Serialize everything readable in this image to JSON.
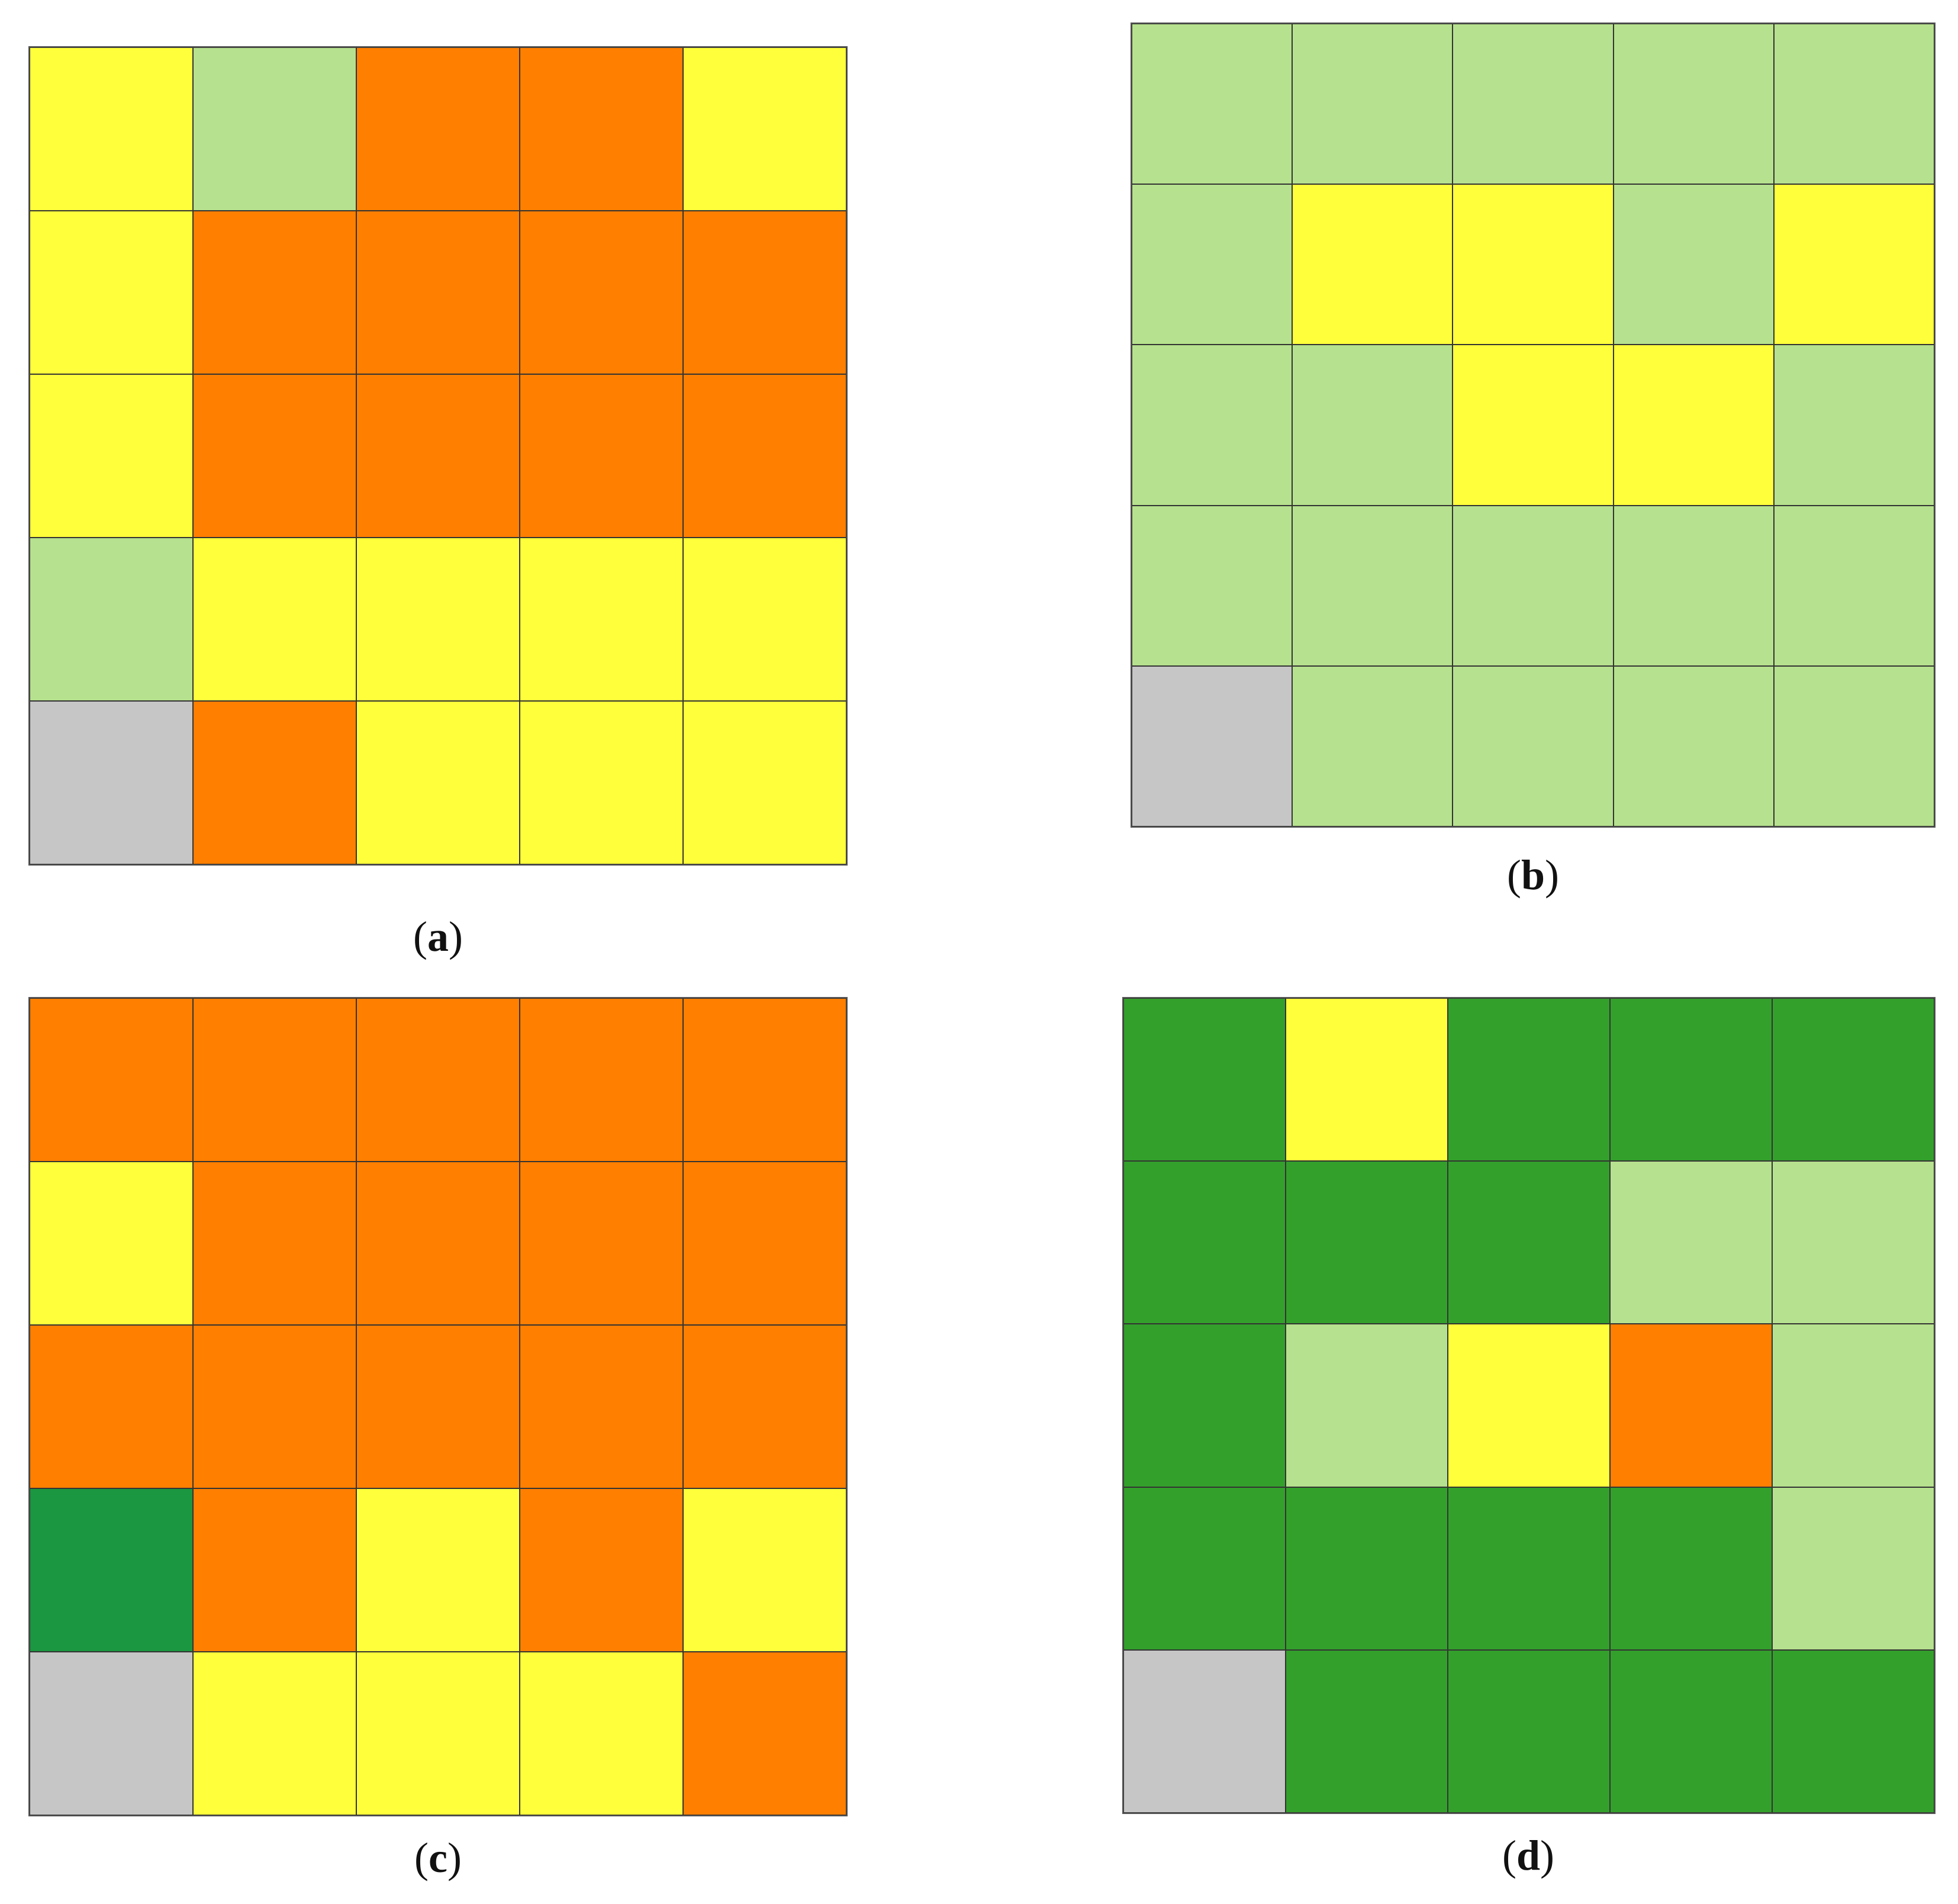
{
  "colors": {
    "O": "#FF7F00",
    "Y": "#FFFF3B",
    "L": "#B6E18E",
    "G": "#34A02C",
    "D": "#1B9641",
    "X": "#C6C6C6"
  },
  "panels": [
    {
      "id": "a",
      "label": "a",
      "cells": [
        [
          "Y",
          "L",
          "O",
          "O",
          "Y"
        ],
        [
          "Y",
          "O",
          "O",
          "O",
          "O"
        ],
        [
          "Y",
          "O",
          "O",
          "O",
          "O"
        ],
        [
          "L",
          "Y",
          "Y",
          "Y",
          "Y"
        ],
        [
          "X",
          "O",
          "Y",
          "Y",
          "Y"
        ]
      ]
    },
    {
      "id": "b",
      "label": "b",
      "cells": [
        [
          "L",
          "L",
          "L",
          "L",
          "L"
        ],
        [
          "L",
          "Y",
          "Y",
          "L",
          "Y"
        ],
        [
          "L",
          "L",
          "Y",
          "Y",
          "L"
        ],
        [
          "L",
          "L",
          "L",
          "L",
          "L"
        ],
        [
          "X",
          "L",
          "L",
          "L",
          "L"
        ]
      ]
    },
    {
      "id": "c",
      "label": "c",
      "cells": [
        [
          "O",
          "O",
          "O",
          "O",
          "O"
        ],
        [
          "Y",
          "O",
          "O",
          "O",
          "O"
        ],
        [
          "O",
          "O",
          "O",
          "O",
          "O"
        ],
        [
          "D",
          "O",
          "Y",
          "O",
          "Y"
        ],
        [
          "X",
          "Y",
          "Y",
          "Y",
          "O"
        ]
      ]
    },
    {
      "id": "d",
      "label": "d",
      "cells": [
        [
          "G",
          "Y",
          "G",
          "G",
          "G"
        ],
        [
          "G",
          "G",
          "G",
          "L",
          "L"
        ],
        [
          "G",
          "L",
          "Y",
          "O",
          "L"
        ],
        [
          "G",
          "G",
          "G",
          "G",
          "L"
        ],
        [
          "X",
          "G",
          "G",
          "G",
          "G"
        ]
      ]
    }
  ]
}
